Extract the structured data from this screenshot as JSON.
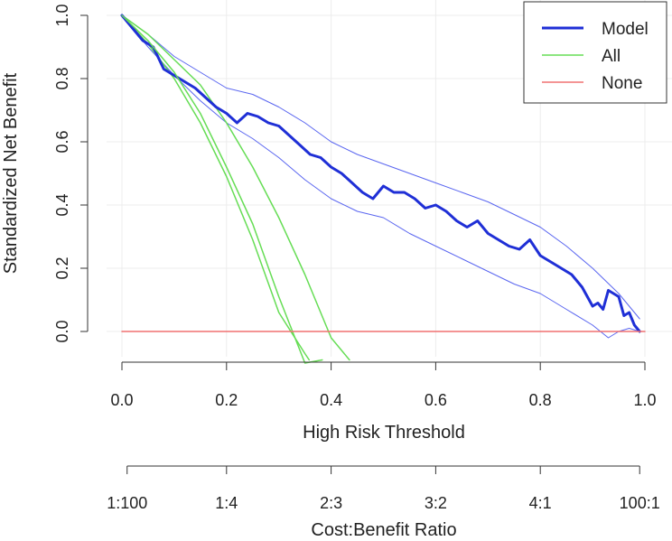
{
  "chart_data": {
    "type": "line",
    "title": "",
    "xlabel": "High Risk Threshold",
    "ylabel": "Standardized Net Benefit",
    "xlim": [
      0.0,
      1.0
    ],
    "ylim": [
      0.0,
      1.0
    ],
    "x_ticks": [
      0.0,
      0.2,
      0.4,
      0.6,
      0.8,
      1.0
    ],
    "x_tick_labels": [
      "0.0",
      "0.2",
      "0.4",
      "0.6",
      "0.8",
      "1.0"
    ],
    "y_ticks": [
      0.0,
      0.2,
      0.4,
      0.6,
      0.8,
      1.0
    ],
    "y_tick_labels": [
      "0.0",
      "0.2",
      "0.4",
      "0.6",
      "0.8",
      "1.0"
    ],
    "grid": true,
    "legend_position": "top-right",
    "secondary_axis": {
      "label": "Cost:Benefit Ratio",
      "ticks": [
        0.0099,
        0.2,
        0.4,
        0.6,
        0.8,
        0.99
      ],
      "tick_labels": [
        "1:100",
        "1:4",
        "2:3",
        "3:2",
        "4:1",
        "100:1"
      ]
    },
    "series": [
      {
        "name": "Model",
        "color": "#1f2fd6",
        "role": "main",
        "x": [
          0.0,
          0.02,
          0.04,
          0.06,
          0.08,
          0.1,
          0.12,
          0.14,
          0.16,
          0.18,
          0.2,
          0.22,
          0.24,
          0.26,
          0.28,
          0.3,
          0.32,
          0.34,
          0.36,
          0.38,
          0.4,
          0.42,
          0.44,
          0.46,
          0.48,
          0.5,
          0.52,
          0.54,
          0.56,
          0.58,
          0.6,
          0.62,
          0.64,
          0.66,
          0.68,
          0.7,
          0.72,
          0.74,
          0.76,
          0.78,
          0.8,
          0.82,
          0.84,
          0.86,
          0.88,
          0.9,
          0.91,
          0.92,
          0.93,
          0.94,
          0.95,
          0.96,
          0.97,
          0.98,
          0.99
        ],
        "values": [
          1.0,
          0.96,
          0.92,
          0.9,
          0.83,
          0.81,
          0.79,
          0.77,
          0.74,
          0.71,
          0.69,
          0.66,
          0.69,
          0.68,
          0.66,
          0.65,
          0.62,
          0.59,
          0.56,
          0.55,
          0.52,
          0.5,
          0.47,
          0.44,
          0.42,
          0.46,
          0.44,
          0.44,
          0.42,
          0.39,
          0.4,
          0.38,
          0.35,
          0.33,
          0.35,
          0.31,
          0.29,
          0.27,
          0.26,
          0.29,
          0.24,
          0.22,
          0.2,
          0.18,
          0.14,
          0.08,
          0.09,
          0.07,
          0.13,
          0.12,
          0.11,
          0.05,
          0.06,
          0.02,
          0.0
        ]
      },
      {
        "name": "Model upper CI",
        "color": "#5a66f0",
        "role": "ci",
        "x": [
          0.0,
          0.05,
          0.1,
          0.15,
          0.2,
          0.25,
          0.3,
          0.35,
          0.4,
          0.45,
          0.5,
          0.55,
          0.6,
          0.65,
          0.7,
          0.75,
          0.8,
          0.85,
          0.9,
          0.95,
          0.99
        ],
        "values": [
          1.0,
          0.94,
          0.87,
          0.82,
          0.77,
          0.75,
          0.71,
          0.66,
          0.6,
          0.56,
          0.53,
          0.5,
          0.47,
          0.44,
          0.41,
          0.37,
          0.33,
          0.27,
          0.2,
          0.12,
          0.04
        ]
      },
      {
        "name": "Model lower CI",
        "color": "#5a66f0",
        "role": "ci",
        "x": [
          0.0,
          0.05,
          0.1,
          0.15,
          0.2,
          0.25,
          0.3,
          0.35,
          0.4,
          0.45,
          0.5,
          0.55,
          0.6,
          0.65,
          0.7,
          0.75,
          0.8,
          0.85,
          0.9,
          0.93,
          0.95,
          0.97,
          0.99
        ],
        "values": [
          1.0,
          0.9,
          0.81,
          0.73,
          0.66,
          0.61,
          0.55,
          0.48,
          0.42,
          0.38,
          0.36,
          0.31,
          0.27,
          0.23,
          0.19,
          0.15,
          0.12,
          0.07,
          0.02,
          -0.02,
          0.0,
          0.01,
          0.0
        ]
      },
      {
        "name": "All",
        "color": "#66dd55",
        "role": "main",
        "x": [
          0.0,
          0.05,
          0.1,
          0.15,
          0.2,
          0.25,
          0.3,
          0.35,
          0.383
        ],
        "values": [
          1.0,
          0.92,
          0.82,
          0.69,
          0.52,
          0.34,
          0.11,
          -0.1,
          -0.09
        ]
      },
      {
        "name": "All upper CI",
        "color": "#66dd55",
        "role": "ci",
        "x": [
          0.0,
          0.05,
          0.1,
          0.15,
          0.2,
          0.25,
          0.3,
          0.35,
          0.4,
          0.435
        ],
        "values": [
          1.0,
          0.94,
          0.86,
          0.78,
          0.66,
          0.52,
          0.36,
          0.18,
          -0.02,
          -0.09
        ]
      },
      {
        "name": "All lower CI",
        "color": "#66dd55",
        "role": "ci",
        "x": [
          0.0,
          0.05,
          0.1,
          0.15,
          0.2,
          0.25,
          0.3,
          0.35,
          0.358
        ],
        "values": [
          1.0,
          0.91,
          0.8,
          0.66,
          0.49,
          0.29,
          0.06,
          -0.07,
          -0.09
        ]
      },
      {
        "name": "None",
        "color": "#f07070",
        "role": "main",
        "x": [
          0.0,
          1.0
        ],
        "values": [
          0.0,
          0.0
        ]
      }
    ],
    "legend": [
      {
        "label": "Model",
        "color": "#1f2fd6"
      },
      {
        "label": "All",
        "color": "#66dd55"
      },
      {
        "label": "None",
        "color": "#f07070"
      }
    ]
  }
}
